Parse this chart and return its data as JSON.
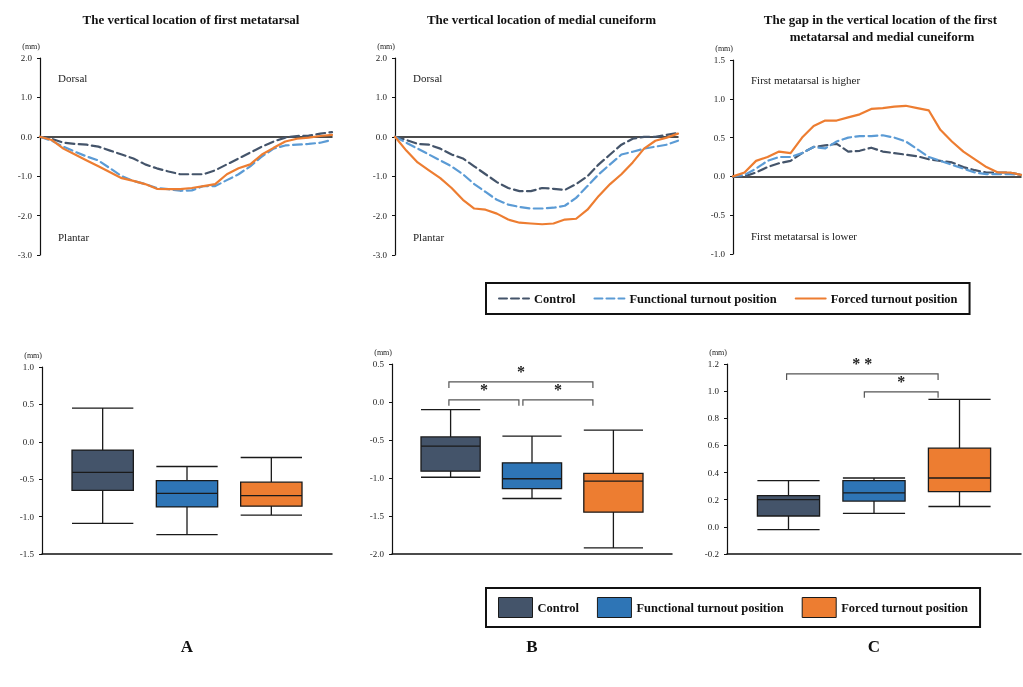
{
  "chart_data": [
    {
      "type": "line",
      "title": "The vertical location of first metatarsal",
      "ylabel": "(mm)",
      "annotations": [
        "Dorsal",
        "Plantar"
      ],
      "categories": [
        null,
        null,
        null,
        null,
        null,
        null,
        null,
        null,
        null,
        null,
        null,
        null,
        null,
        null,
        null,
        null,
        null,
        null,
        null,
        null,
        null,
        null,
        null,
        null,
        null,
        null
      ],
      "ylim": [
        -3,
        2
      ],
      "yticks": [
        {
          "value": -3,
          "label": "-3.0"
        },
        {
          "value": -2,
          "label": "-2.0"
        },
        {
          "value": -1,
          "label": "-1.0"
        },
        {
          "value": 0,
          "label": "0.0"
        },
        {
          "value": 1,
          "label": "1.0"
        },
        {
          "value": 2,
          "label": "2.0"
        }
      ],
      "tick_labels": "y",
      "marker": "none",
      "series": [
        {
          "color": "#44546a",
          "line_style": "dashed",
          "values": [
            0,
            -0.05,
            -0.15,
            -0.18,
            -0.2,
            -0.25,
            -0.35,
            -0.45,
            -0.55,
            -0.7,
            -0.8,
            -0.88,
            -0.95,
            -0.95,
            -0.95,
            -0.85,
            -0.7,
            -0.55,
            -0.4,
            -0.25,
            -0.12,
            -0.02,
            0.02,
            0.03,
            0.08,
            0.12
          ]
        },
        {
          "color": "#5b9bd5",
          "line_style": "dashed",
          "values": [
            0,
            -0.1,
            -0.25,
            -0.38,
            -0.5,
            -0.6,
            -0.8,
            -1.0,
            -1.12,
            -1.2,
            -1.3,
            -1.33,
            -1.37,
            -1.36,
            -1.25,
            -1.25,
            -1.1,
            -0.95,
            -0.75,
            -0.5,
            -0.3,
            -0.22,
            -0.2,
            -0.18,
            -0.15,
            -0.08
          ]
        },
        {
          "color": "#ed7d31",
          "line_style": "solid",
          "values": [
            0,
            -0.08,
            -0.3,
            -0.45,
            -0.6,
            -0.75,
            -0.9,
            -1.05,
            -1.12,
            -1.2,
            -1.32,
            -1.33,
            -1.33,
            -1.3,
            -1.25,
            -1.2,
            -0.95,
            -0.8,
            -0.7,
            -0.45,
            -0.28,
            -0.12,
            -0.05,
            -0.02,
            0.02,
            0.05
          ]
        }
      ]
    },
    {
      "type": "line",
      "title": "The vertical location of medial cuneiform",
      "ylabel": "(mm)",
      "annotations": [
        "Dorsal",
        "Plantar"
      ],
      "categories": [
        null,
        null,
        null,
        null,
        null,
        null,
        null,
        null,
        null,
        null,
        null,
        null,
        null,
        null,
        null,
        null,
        null,
        null,
        null,
        null,
        null,
        null,
        null,
        null,
        null,
        null
      ],
      "ylim": [
        -3,
        2
      ],
      "yticks": [
        {
          "value": -3,
          "label": "-3.0"
        },
        {
          "value": -2,
          "label": "-2.0"
        },
        {
          "value": -1,
          "label": "-1.0"
        },
        {
          "value": 0,
          "label": "0.0"
        },
        {
          "value": 1,
          "label": "1.0"
        },
        {
          "value": 2,
          "label": "2.0"
        }
      ],
      "tick_labels": "y",
      "marker": "none",
      "series": [
        {
          "color": "#44546a",
          "line_style": "dashed",
          "values": [
            0,
            -0.08,
            -0.18,
            -0.2,
            -0.3,
            -0.45,
            -0.55,
            -0.75,
            -0.95,
            -1.15,
            -1.3,
            -1.38,
            -1.38,
            -1.3,
            -1.32,
            -1.35,
            -1.2,
            -1.0,
            -0.7,
            -0.45,
            -0.2,
            -0.05,
            0.0,
            0.0,
            0.05,
            0.1
          ]
        },
        {
          "color": "#5b9bd5",
          "line_style": "dashed",
          "values": [
            0,
            -0.15,
            -0.3,
            -0.45,
            -0.6,
            -0.75,
            -0.95,
            -1.2,
            -1.4,
            -1.6,
            -1.72,
            -1.78,
            -1.82,
            -1.82,
            -1.8,
            -1.75,
            -1.55,
            -1.25,
            -0.95,
            -0.7,
            -0.45,
            -0.38,
            -0.3,
            -0.25,
            -0.2,
            -0.1
          ]
        },
        {
          "color": "#ed7d31",
          "line_style": "solid",
          "values": [
            0,
            -0.35,
            -0.65,
            -0.85,
            -1.05,
            -1.3,
            -1.6,
            -1.82,
            -1.85,
            -1.95,
            -2.1,
            -2.18,
            -2.2,
            -2.22,
            -2.2,
            -2.1,
            -2.08,
            -1.85,
            -1.5,
            -1.2,
            -0.95,
            -0.65,
            -0.3,
            -0.1,
            -0.02,
            0.08
          ]
        }
      ]
    },
    {
      "type": "line",
      "title": "The gap in the vertical location of the first metatarsal and medial cuneiform",
      "ylabel": "(mm)",
      "annotations": [
        "First metatarsal is higher",
        "First metatarsal is lower"
      ],
      "categories": [
        null,
        null,
        null,
        null,
        null,
        null,
        null,
        null,
        null,
        null,
        null,
        null,
        null,
        null,
        null,
        null,
        null,
        null,
        null,
        null,
        null,
        null,
        null,
        null,
        null,
        null
      ],
      "ylim": [
        -1,
        1.5
      ],
      "yticks": [
        {
          "value": -1,
          "label": "-1.0"
        },
        -0.5,
        {
          "value": 0,
          "label": "0.0"
        },
        0.5,
        {
          "value": 1,
          "label": "1.0"
        },
        1.5
      ],
      "tick_labels": "y",
      "marker": "none",
      "legend": "bottom",
      "series": [
        {
          "name": "Control",
          "color": "#44546a",
          "line_style": "dashed",
          "values": [
            0,
            0,
            0.05,
            0.12,
            0.17,
            0.2,
            0.3,
            0.38,
            0.4,
            0.42,
            0.32,
            0.33,
            0.37,
            0.32,
            0.3,
            0.28,
            0.26,
            0.22,
            0.2,
            0.18,
            0.12,
            0.08,
            0.05,
            0.05,
            0.05,
            0.02
          ]
        },
        {
          "name": "Functional turnout position",
          "color": "#5b9bd5",
          "line_style": "dashed",
          "values": [
            0,
            0.02,
            0.1,
            0.2,
            0.25,
            0.25,
            0.3,
            0.38,
            0.36,
            0.45,
            0.5,
            0.52,
            0.52,
            0.53,
            0.5,
            0.45,
            0.35,
            0.25,
            0.2,
            0.15,
            0.1,
            0.05,
            0.03,
            0.03,
            0.03,
            0.02
          ]
        },
        {
          "name": "Forced turnout position",
          "color": "#ed7d31",
          "line_style": "solid",
          "values": [
            0,
            0.05,
            0.2,
            0.25,
            0.32,
            0.3,
            0.5,
            0.65,
            0.72,
            0.72,
            0.76,
            0.8,
            0.87,
            0.88,
            0.9,
            0.91,
            0.88,
            0.85,
            0.6,
            0.45,
            0.32,
            0.22,
            0.12,
            0.05,
            0.05,
            0.02
          ]
        }
      ]
    },
    {
      "type": "box",
      "xlabel": "A",
      "ylabel": "(mm)",
      "categories": [
        null
      ],
      "ylim": [
        -1.5,
        1
      ],
      "yticks": [
        {
          "value": -1.5,
          "label": "-1.5"
        },
        {
          "value": -1,
          "label": "-1.0"
        },
        {
          "value": -0.5,
          "label": "-0.5"
        },
        {
          "value": 0,
          "label": "0.0"
        },
        {
          "value": 0.5,
          "label": "0.5"
        },
        {
          "value": 1,
          "label": "1.0"
        }
      ],
      "tick_labels": "y",
      "series": [
        {
          "color": "#44546a",
          "boxes": [
            {
              "low": -1.09,
              "q1": -0.65,
              "median": -0.41,
              "q3": -0.11,
              "high": 0.45
            }
          ]
        },
        {
          "color": "#2e75b6",
          "boxes": [
            {
              "low": -1.24,
              "q1": -0.87,
              "median": -0.69,
              "q3": -0.52,
              "high": -0.33
            }
          ]
        },
        {
          "color": "#ed7d31",
          "boxes": [
            {
              "low": -0.98,
              "q1": -0.86,
              "median": -0.72,
              "q3": -0.54,
              "high": -0.21
            }
          ]
        }
      ]
    },
    {
      "type": "box",
      "xlabel": "B",
      "ylabel": "(mm)",
      "annotations": [
        "*",
        "*",
        "*"
      ],
      "categories": [
        null
      ],
      "ylim": [
        -2,
        0.5
      ],
      "yticks": [
        {
          "value": -2,
          "label": "-2.0"
        },
        {
          "value": -1.5,
          "label": "-1.5"
        },
        {
          "value": -1,
          "label": "-1.0"
        },
        {
          "value": -0.5,
          "label": "-0.5"
        },
        {
          "value": 0,
          "label": "0.0"
        },
        {
          "value": 0.5,
          "label": "0.5"
        }
      ],
      "tick_labels": "y",
      "series": [
        {
          "color": "#44546a",
          "boxes": [
            {
              "low": -0.99,
              "q1": -0.91,
              "median": -0.58,
              "q3": -0.46,
              "high": -0.1
            }
          ]
        },
        {
          "color": "#2e75b6",
          "boxes": [
            {
              "low": -1.27,
              "q1": -1.14,
              "median": -1.01,
              "q3": -0.8,
              "high": -0.45
            }
          ]
        },
        {
          "color": "#ed7d31",
          "boxes": [
            {
              "low": -1.92,
              "q1": -1.45,
              "median": -1.04,
              "q3": -0.94,
              "high": -0.37
            }
          ]
        }
      ]
    },
    {
      "type": "box",
      "xlabel": "C",
      "ylabel": "(mm)",
      "annotations": [
        "* *",
        "*"
      ],
      "categories": [
        null
      ],
      "ylim": [
        -0.2,
        1.2
      ],
      "yticks": [
        -0.2,
        {
          "value": 0,
          "label": "0.0"
        },
        0.2,
        0.4,
        0.6,
        0.8,
        {
          "value": 1,
          "label": "1.0"
        },
        1.2
      ],
      "tick_labels": "y",
      "legend": "bottom",
      "series": [
        {
          "name": "Control",
          "color": "#44546a",
          "boxes": [
            {
              "low": -0.02,
              "q1": 0.08,
              "median": 0.2,
              "q3": 0.23,
              "high": 0.34
            }
          ]
        },
        {
          "name": "Functional turnout position",
          "color": "#2e75b6",
          "boxes": [
            {
              "low": 0.1,
              "q1": 0.19,
              "median": 0.25,
              "q3": 0.34,
              "high": 0.36
            }
          ]
        },
        {
          "name": "Forced turnout position",
          "color": "#ed7d31",
          "boxes": [
            {
              "low": 0.15,
              "q1": 0.26,
              "median": 0.36,
              "q3": 0.58,
              "high": 0.94
            }
          ]
        }
      ]
    }
  ]
}
